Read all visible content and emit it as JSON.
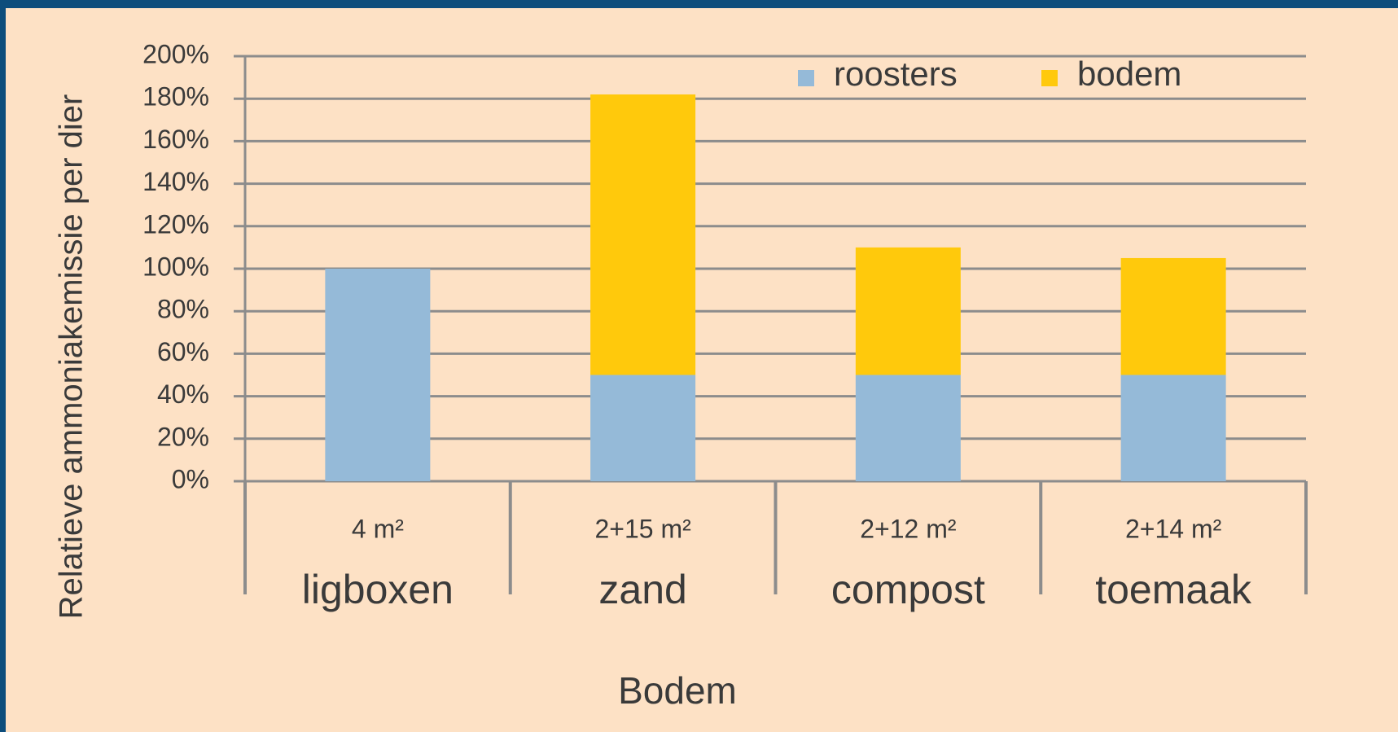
{
  "chart_data": {
    "type": "stacked_bar",
    "y_label": "Relatieve ammoniakemissie per dier",
    "x_label": "Bodem",
    "categories": [
      "ligboxen",
      "zand",
      "compost",
      "toemaak"
    ],
    "subcategories": [
      "4 m²",
      "2+15 m²",
      "2+12 m²",
      "2+14 m²"
    ],
    "series": [
      {
        "name": "roosters",
        "color": "#95bad8",
        "values": [
          100,
          50,
          50,
          50
        ]
      },
      {
        "name": "bodem",
        "color": "#ffc90c",
        "values": [
          null,
          132,
          60,
          55
        ]
      }
    ],
    "ylim": [
      0,
      200
    ],
    "yticks": [
      {
        "value": 0,
        "label": "0%"
      },
      {
        "value": 20,
        "label": "20%"
      },
      {
        "value": 40,
        "label": "40%"
      },
      {
        "value": 60,
        "label": "60%"
      },
      {
        "value": 80,
        "label": "80%"
      },
      {
        "value": 100,
        "label": "100%"
      },
      {
        "value": 120,
        "label": "120%"
      },
      {
        "value": 140,
        "label": "140%"
      },
      {
        "value": 160,
        "label": "160%"
      },
      {
        "value": 180,
        "label": "180%"
      },
      {
        "value": 200,
        "label": "200%"
      }
    ],
    "grid": true,
    "legend": "top-right"
  }
}
